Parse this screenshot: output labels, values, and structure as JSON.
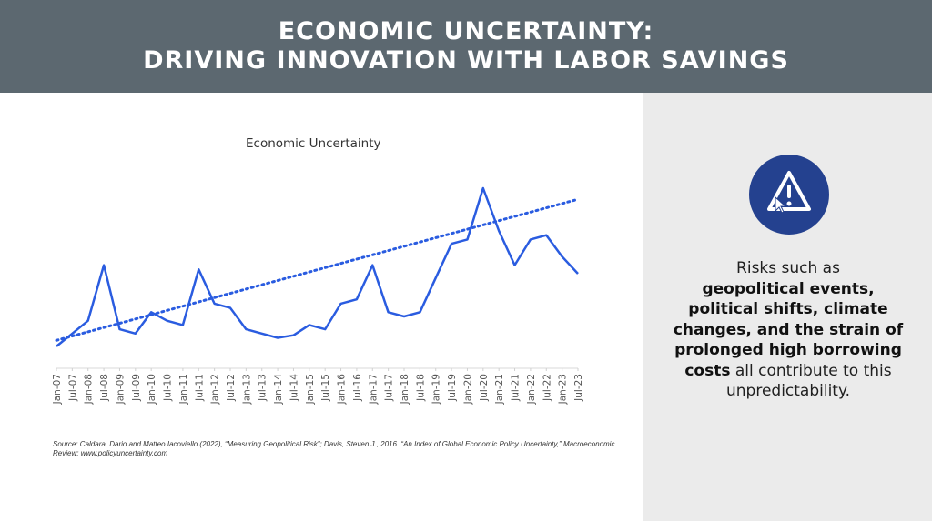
{
  "header": {
    "line1": "ECONOMIC UNCERTAINTY:",
    "line2": "DRIVING INNOVATION WITH LABOR SAVINGS",
    "bg_color": "#5c6870"
  },
  "sidebar": {
    "icon": "warning-triangle-icon",
    "icon_bg": "#24418f",
    "text": {
      "p1": "Risks such as",
      "b1": "geopolitical events, political shifts, climate changes, and the strain of prolonged high borrowing costs",
      "p2": "all contribute to this unpredictability."
    }
  },
  "source_note": "Source: Caldara, Dario and Matteo Iacoviello (2022), “Measuring Geopolitical Risk”; Davis, Steven J., 2016. “An Index of Global Economic Policy Uncertainty,” Macroeconomic Review; www.policyuncertainty.com",
  "chart_data": {
    "type": "line",
    "title": "Economic Uncertainty",
    "xlabel": "",
    "ylabel": "",
    "grid": false,
    "legend": "none",
    "line_color": "#2a5ce0",
    "ylim": [
      0,
      250
    ],
    "categories": [
      "Jan-07",
      "Jul-07",
      "Jan-08",
      "Jul-08",
      "Jan-09",
      "Jul-09",
      "Jan-10",
      "Jul-10",
      "Jan-11",
      "Jul-11",
      "Jan-12",
      "Jul-12",
      "Jan-13",
      "Jul-13",
      "Jan-14",
      "Jul-14",
      "Jan-15",
      "Jul-15",
      "Jan-16",
      "Jul-16",
      "Jan-17",
      "Jul-17",
      "Jan-18",
      "Jul-18",
      "Jan-19",
      "Jul-19",
      "Jan-20",
      "Jul-20",
      "Jan-21",
      "Jul-21",
      "Jan-22",
      "Jul-22",
      "Jan-23",
      "Jul-23"
    ],
    "series": [
      {
        "name": "Economic Uncertainty",
        "style": "solid",
        "values": [
          15,
          30,
          45,
          110,
          35,
          30,
          55,
          45,
          40,
          105,
          65,
          60,
          35,
          30,
          25,
          28,
          40,
          35,
          65,
          70,
          110,
          55,
          50,
          55,
          95,
          135,
          140,
          200,
          150,
          110,
          140,
          145,
          120,
          100
        ]
      },
      {
        "name": "Trend",
        "style": "dotted",
        "values": [
          22,
          27,
          32,
          37,
          42,
          47,
          52,
          57,
          62,
          67,
          72,
          77,
          82,
          87,
          92,
          97,
          102,
          107,
          112,
          117,
          122,
          127,
          132,
          137,
          142,
          147,
          152,
          157,
          162,
          167,
          172,
          177,
          182,
          187
        ]
      }
    ]
  }
}
